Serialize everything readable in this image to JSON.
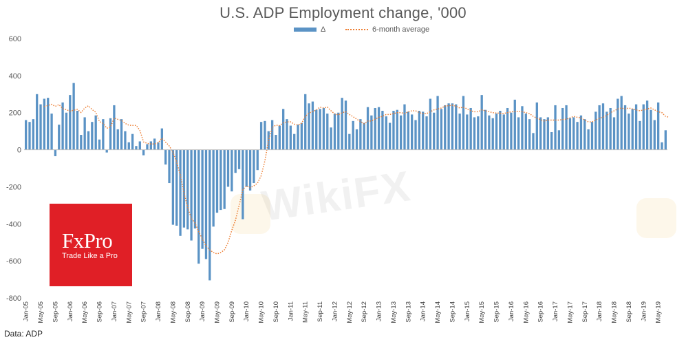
{
  "chart_data": {
    "type": "bar",
    "title": "U.S. ADP Employment change, '000",
    "series": [
      {
        "name": "Δ",
        "type": "bar",
        "color": "#5b93c5"
      },
      {
        "name": "6-month average",
        "type": "line",
        "style": "dotted",
        "color": "#ed7d31"
      }
    ],
    "ylim": [
      -800,
      600
    ],
    "yticks": [
      -800,
      -600,
      -400,
      -200,
      0,
      200,
      400,
      600
    ],
    "grid": false,
    "legend": "top-center",
    "xtick_labels": [
      "Jan-05",
      "May-05",
      "Sep-05",
      "Jan-06",
      "May-06",
      "Sep-06",
      "Jan-07",
      "May-07",
      "Sep-07",
      "Jan-08",
      "May-08",
      "Sep-08",
      "Jan-09",
      "May-09",
      "Sep-09",
      "Jan-10",
      "May-10",
      "Sep-10",
      "Jan-11",
      "May-11",
      "Sep-11",
      "Jan-12",
      "May-12",
      "Sep-12",
      "Jan-13",
      "May-13",
      "Sep-13",
      "Jan-14",
      "May-14",
      "Sep-14",
      "Jan-15",
      "May-15",
      "Sep-15",
      "Jan-16",
      "May-16",
      "Sep-16",
      "Jan-17",
      "May-17",
      "Sep-17",
      "Jan-18",
      "May-18",
      "Sep-18",
      "Jan-19",
      "May-19"
    ],
    "values": [
      160,
      150,
      165,
      300,
      245,
      275,
      280,
      195,
      -35,
      135,
      255,
      200,
      295,
      360,
      210,
      80,
      175,
      100,
      150,
      185,
      55,
      165,
      -15,
      170,
      240,
      110,
      165,
      100,
      40,
      85,
      20,
      45,
      -30,
      30,
      45,
      60,
      40,
      115,
      -80,
      -180,
      -405,
      -410,
      -465,
      -420,
      -430,
      -490,
      -425,
      -615,
      -535,
      -590,
      -705,
      -415,
      -340,
      -325,
      -320,
      -200,
      -225,
      -125,
      -105,
      -375,
      -200,
      -220,
      -180,
      -110,
      150,
      155,
      100,
      160,
      80,
      130,
      220,
      165,
      130,
      85,
      135,
      145,
      300,
      250,
      260,
      215,
      220,
      225,
      195,
      120,
      195,
      200,
      280,
      265,
      85,
      155,
      110,
      165,
      145,
      230,
      185,
      225,
      230,
      210,
      180,
      145,
      210,
      215,
      185,
      245,
      205,
      190,
      160,
      210,
      205,
      180,
      275,
      200,
      290,
      220,
      240,
      250,
      250,
      245,
      195,
      290,
      190,
      225,
      175,
      180,
      295,
      215,
      185,
      170,
      195,
      210,
      190,
      225,
      200,
      270,
      175,
      235,
      195,
      165,
      90,
      255,
      175,
      165,
      175,
      95,
      240,
      105,
      225,
      240,
      170,
      175,
      150,
      185,
      165,
      110,
      150,
      205,
      240,
      250,
      205,
      225,
      175,
      275,
      290,
      240,
      195,
      220,
      245,
      155,
      245,
      265,
      215,
      160,
      255,
      40,
      105
    ],
    "average_6m": [
      null,
      null,
      null,
      null,
      null,
      232,
      239,
      245,
      234,
      244,
      222,
      216,
      208,
      213,
      218,
      201,
      225,
      237,
      217,
      202,
      152,
      142,
      116,
      122,
      171,
      164,
      158,
      142,
      132,
      131,
      131,
      104,
      42,
      34,
      31,
      31,
      38,
      62,
      41,
      20,
      -13,
      -67,
      -136,
      -234,
      -311,
      -371,
      -395,
      -443,
      -481,
      -520,
      -540,
      -555,
      -562,
      -555,
      -540,
      -500,
      -435,
      -380,
      -300,
      -215,
      -195,
      -205,
      -195,
      -180,
      -140,
      -60,
      50,
      120,
      133,
      130,
      145,
      150,
      150,
      138,
      133,
      143,
      180,
      198,
      205,
      215,
      230,
      225,
      230,
      210,
      193,
      188,
      200,
      205,
      190,
      178,
      165,
      152,
      140,
      155,
      155,
      165,
      175,
      180,
      190,
      190,
      195,
      200,
      200,
      195,
      205,
      210,
      210,
      200,
      195,
      195,
      205,
      215,
      220,
      225,
      235,
      238,
      240,
      235,
      225,
      230,
      220,
      210,
      205,
      205,
      215,
      210,
      205,
      200,
      198,
      197,
      196,
      200,
      205,
      205,
      208,
      205,
      200,
      195,
      180,
      170,
      162,
      155,
      160,
      160,
      160,
      160,
      163,
      165,
      172,
      180,
      175,
      172,
      160,
      150,
      150,
      160,
      170,
      175,
      185,
      200,
      210,
      220,
      225,
      220,
      225,
      220,
      215,
      210,
      215,
      220,
      225,
      215,
      205,
      200,
      180,
      175
    ]
  },
  "source": "Data: ADP",
  "logo": {
    "name": "FxPro",
    "tagline": "Trade Like a Pro"
  },
  "watermark": "WikiFX"
}
